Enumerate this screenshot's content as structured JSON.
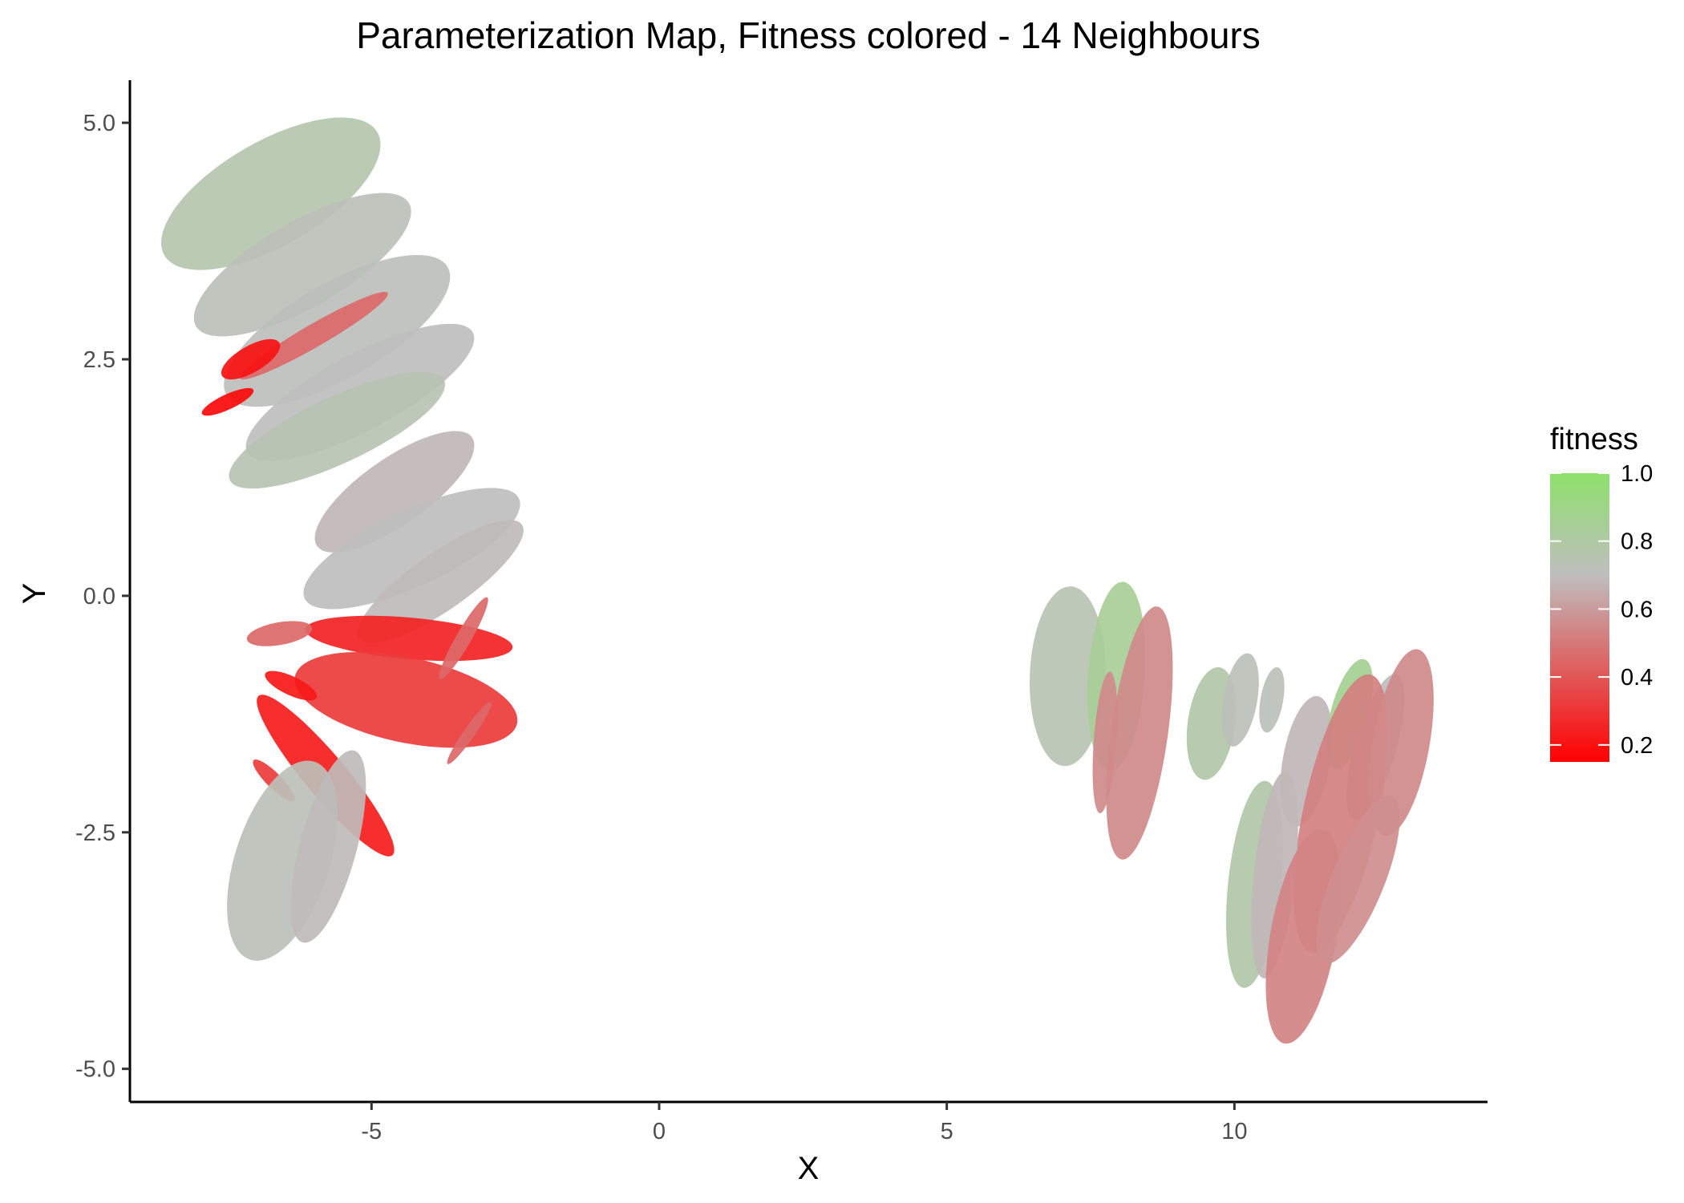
{
  "chart_data": {
    "type": "scatter",
    "title": "Parameterization Map, Fitness colored - 14 Neighbours",
    "xlabel": "X",
    "ylabel": "Y",
    "xlim": [
      -9.2,
      14.4
    ],
    "ylim": [
      -5.35,
      5.45
    ],
    "x_ticks": [
      -5,
      0,
      5,
      10
    ],
    "x_tick_labels": [
      "-5",
      "0",
      "5",
      "10"
    ],
    "y_ticks": [
      5.0,
      2.5,
      0.0,
      -2.5,
      -5.0
    ],
    "y_tick_labels": [
      "5.0",
      "2.5",
      "0.0",
      "-2.5",
      "-5.0"
    ],
    "grid": false,
    "legend": {
      "title": "fitness",
      "position": "right",
      "range": [
        0.15,
        1.0
      ],
      "ticks": [
        1.0,
        0.8,
        0.6,
        0.4,
        0.2
      ],
      "tick_labels": [
        "1.0",
        "0.8",
        "0.6",
        "0.4",
        "0.2"
      ],
      "colors": {
        "low": "#ff0000",
        "mid": "#bebebe",
        "high": "#8ee06b"
      },
      "midpoint": 0.7
    },
    "clusters": [
      {
        "x": -6.75,
        "y": 4.25,
        "rx": 1.3,
        "ry": 0.55,
        "angle": 30,
        "fitness": 0.76
      },
      {
        "x": -6.2,
        "y": 3.5,
        "rx": 1.3,
        "ry": 0.45,
        "angle": 30,
        "fitness": 0.72
      },
      {
        "x": -5.6,
        "y": 2.8,
        "rx": 1.35,
        "ry": 0.5,
        "angle": 30,
        "fitness": 0.71
      },
      {
        "x": -5.2,
        "y": 2.15,
        "rx": 1.35,
        "ry": 0.4,
        "angle": 28,
        "fitness": 0.7
      },
      {
        "x": -5.6,
        "y": 1.75,
        "rx": 1.25,
        "ry": 0.35,
        "angle": 25,
        "fitness": 0.74
      },
      {
        "x": -4.6,
        "y": 1.1,
        "rx": 1.0,
        "ry": 0.35,
        "angle": 35,
        "fitness": 0.68
      },
      {
        "x": -4.3,
        "y": 0.5,
        "rx": 1.25,
        "ry": 0.4,
        "angle": 25,
        "fitness": 0.7
      },
      {
        "x": -3.8,
        "y": 0.15,
        "rx": 1.05,
        "ry": 0.3,
        "angle": 35,
        "fitness": 0.69
      },
      {
        "x": -6.0,
        "y": 2.75,
        "rx": 0.9,
        "ry": 0.12,
        "angle": 30,
        "fitness": 0.45
      },
      {
        "x": -7.1,
        "y": 2.5,
        "rx": 0.35,
        "ry": 0.14,
        "angle": 30,
        "fitness": 0.2
      },
      {
        "x": -7.5,
        "y": 2.05,
        "rx": 0.3,
        "ry": 0.08,
        "angle": 25,
        "fitness": 0.18
      },
      {
        "x": -4.35,
        "y": -0.45,
        "rx": 1.1,
        "ry": 0.22,
        "angle": -5,
        "fitness": 0.25
      },
      {
        "x": -4.4,
        "y": -1.1,
        "rx": 1.2,
        "ry": 0.45,
        "angle": -12,
        "fitness": 0.32
      },
      {
        "x": -6.6,
        "y": -0.4,
        "rx": 0.35,
        "ry": 0.12,
        "angle": 10,
        "fitness": 0.45
      },
      {
        "x": -6.4,
        "y": -0.95,
        "rx": 0.3,
        "ry": 0.1,
        "angle": -25,
        "fitness": 0.22
      },
      {
        "x": -5.8,
        "y": -1.9,
        "rx": 1.1,
        "ry": 0.22,
        "angle": -50,
        "fitness": 0.23
      },
      {
        "x": -3.4,
        "y": -0.45,
        "rx": 0.5,
        "ry": 0.08,
        "angle": 60,
        "fitness": 0.45
      },
      {
        "x": -3.3,
        "y": -1.45,
        "rx": 0.4,
        "ry": 0.06,
        "angle": 55,
        "fitness": 0.45
      },
      {
        "x": -6.7,
        "y": -1.95,
        "rx": 0.3,
        "ry": 0.08,
        "angle": -45,
        "fitness": 0.32
      },
      {
        "x": -6.55,
        "y": -2.8,
        "rx": 1.1,
        "ry": 0.5,
        "angle": 72,
        "fitness": 0.72
      },
      {
        "x": -5.75,
        "y": -2.65,
        "rx": 1.05,
        "ry": 0.3,
        "angle": 75,
        "fitness": 0.69
      },
      {
        "x": 7.1,
        "y": -0.85,
        "rx": 0.95,
        "ry": 0.4,
        "angle": 88,
        "fitness": 0.74
      },
      {
        "x": 7.95,
        "y": -0.85,
        "rx": 1.0,
        "ry": 0.3,
        "angle": 86,
        "fitness": 0.84
      },
      {
        "x": 8.35,
        "y": -1.45,
        "rx": 1.35,
        "ry": 0.3,
        "angle": 82,
        "fitness": 0.55
      },
      {
        "x": 7.75,
        "y": -1.55,
        "rx": 0.75,
        "ry": 0.12,
        "angle": 86,
        "fitness": 0.55
      },
      {
        "x": 9.6,
        "y": -1.35,
        "rx": 0.6,
        "ry": 0.25,
        "angle": 82,
        "fitness": 0.78
      },
      {
        "x": 10.1,
        "y": -1.1,
        "rx": 0.5,
        "ry": 0.18,
        "angle": 80,
        "fitness": 0.72
      },
      {
        "x": 10.65,
        "y": -1.1,
        "rx": 0.35,
        "ry": 0.12,
        "angle": 80,
        "fitness": 0.72
      },
      {
        "x": 11.25,
        "y": -1.75,
        "rx": 0.7,
        "ry": 0.25,
        "angle": 80,
        "fitness": 0.68
      },
      {
        "x": 12.0,
        "y": -1.25,
        "rx": 0.6,
        "ry": 0.2,
        "angle": 75,
        "fitness": 0.86
      },
      {
        "x": 12.45,
        "y": -1.6,
        "rx": 0.8,
        "ry": 0.22,
        "angle": 74,
        "fitness": 0.7
      },
      {
        "x": 11.85,
        "y": -2.3,
        "rx": 1.5,
        "ry": 0.4,
        "angle": 78,
        "fitness": 0.52
      },
      {
        "x": 12.9,
        "y": -1.55,
        "rx": 1.0,
        "ry": 0.3,
        "angle": 80,
        "fitness": 0.55
      },
      {
        "x": 10.35,
        "y": -3.05,
        "rx": 1.1,
        "ry": 0.28,
        "angle": 84,
        "fitness": 0.78
      },
      {
        "x": 10.7,
        "y": -2.95,
        "rx": 1.1,
        "ry": 0.22,
        "angle": 84,
        "fitness": 0.68
      },
      {
        "x": 11.2,
        "y": -3.6,
        "rx": 1.15,
        "ry": 0.35,
        "angle": 80,
        "fitness": 0.53
      },
      {
        "x": 12.15,
        "y": -3.0,
        "rx": 0.95,
        "ry": 0.28,
        "angle": 68,
        "fitness": 0.56
      }
    ]
  }
}
